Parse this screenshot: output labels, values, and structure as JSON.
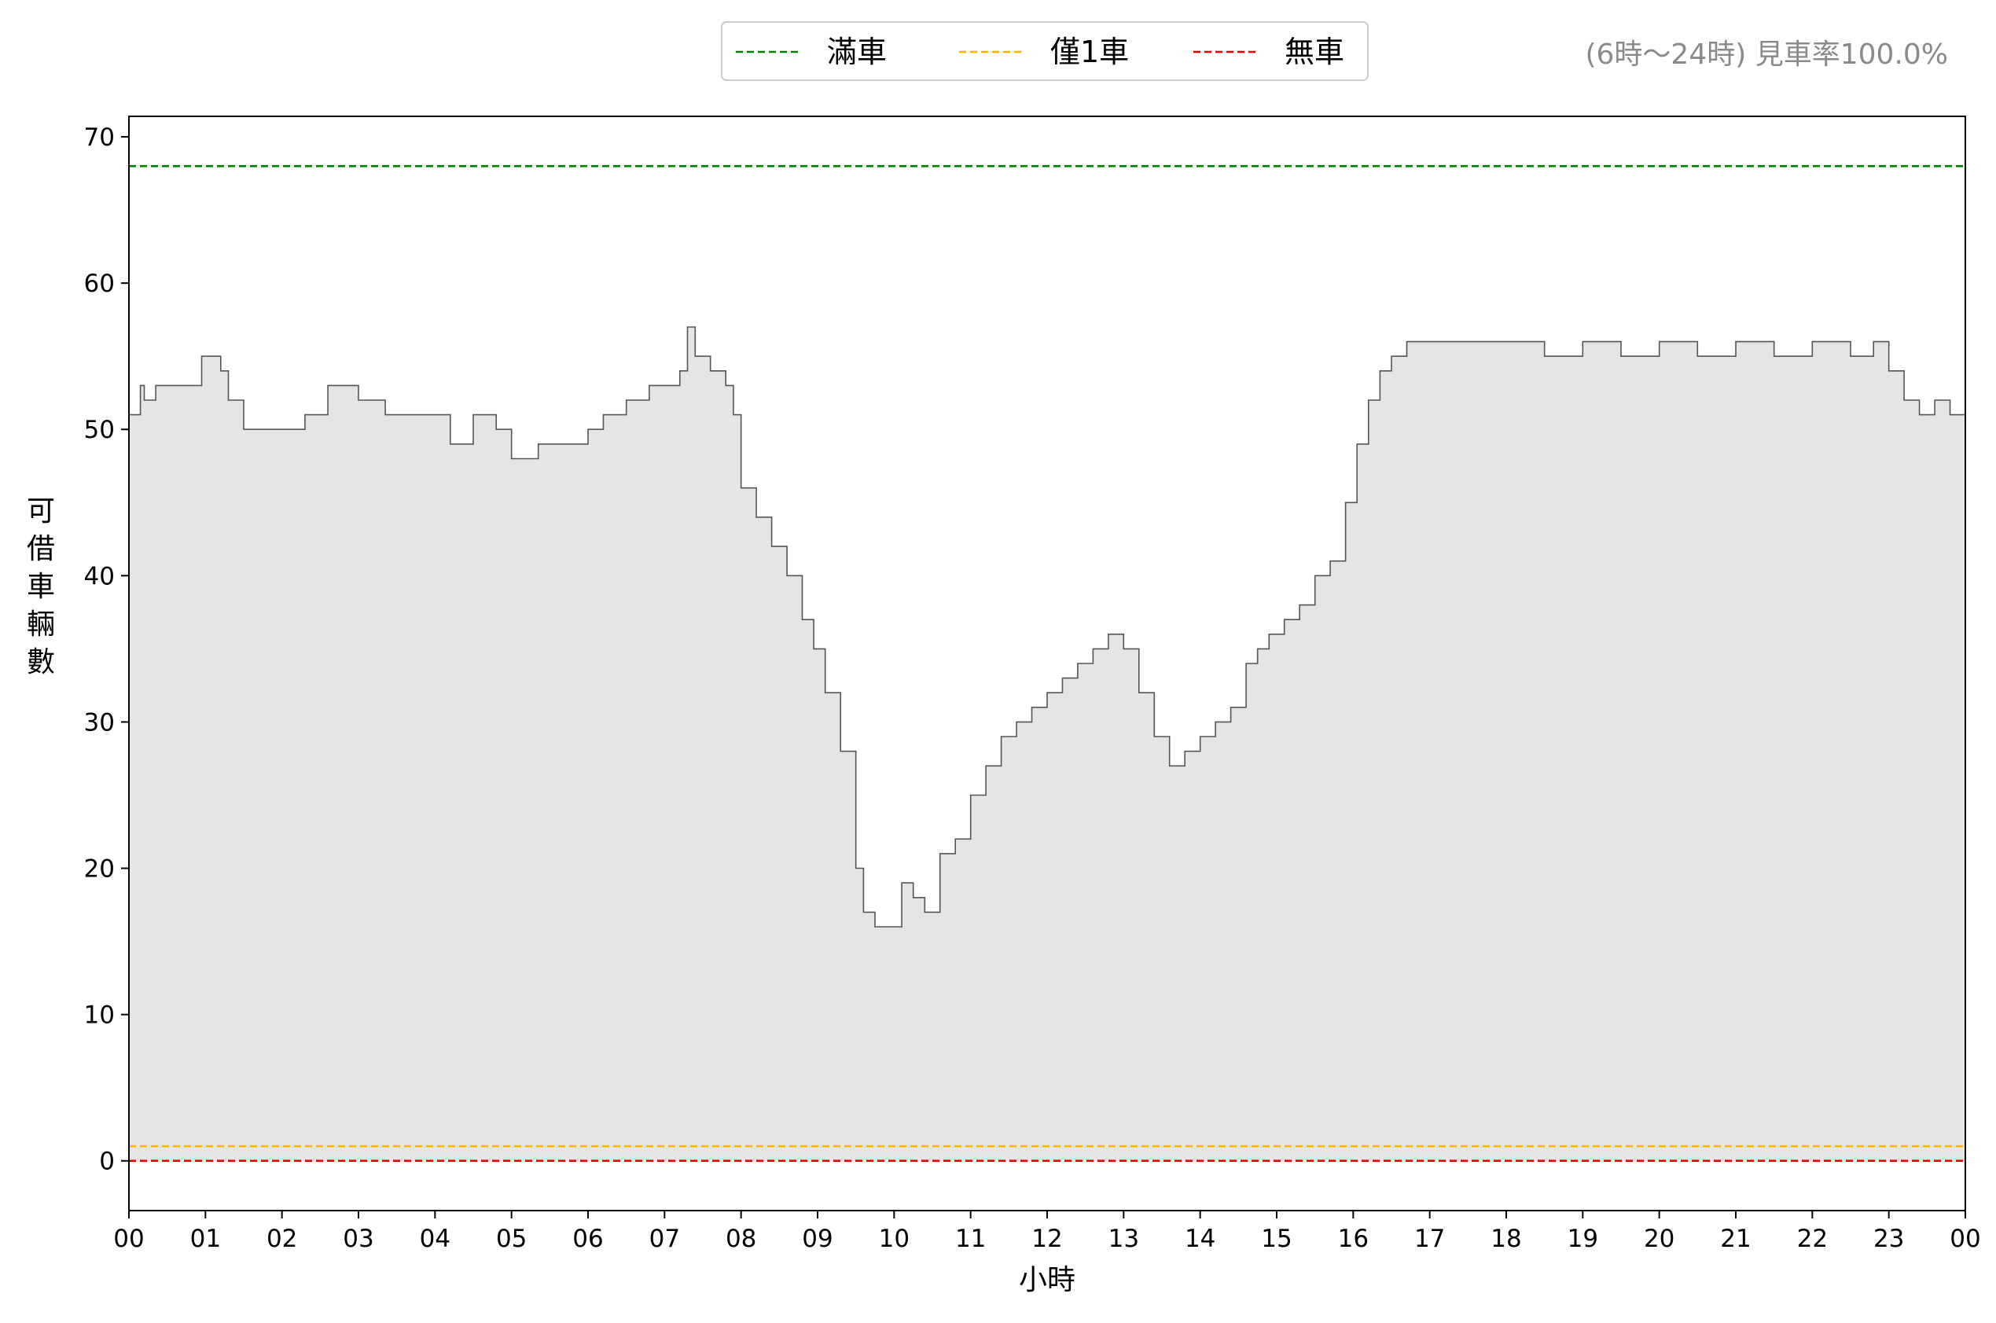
{
  "chart_data": {
    "type": "area",
    "title": "",
    "note": "(6時〜24時) 見車率100.0%",
    "xlabel": "小時",
    "ylabel": "可借車輛數",
    "xlim": [
      0,
      24
    ],
    "ylim": [
      -3.4,
      71.4
    ],
    "x_ticks": [
      "00",
      "01",
      "02",
      "03",
      "04",
      "05",
      "06",
      "07",
      "08",
      "09",
      "10",
      "11",
      "12",
      "13",
      "14",
      "15",
      "16",
      "17",
      "18",
      "19",
      "20",
      "21",
      "22",
      "23",
      "00"
    ],
    "y_ticks": [
      0,
      10,
      20,
      30,
      40,
      50,
      60,
      70
    ],
    "grid": false,
    "legend_position": "top-center",
    "fill_color": "#e5e5e5",
    "line_color": "#555555",
    "reference_lines": [
      {
        "name": "滿車",
        "value": 68,
        "color": "#008000"
      },
      {
        "name": "僅1車",
        "value": 1,
        "color": "#ffb000"
      },
      {
        "name": "無車",
        "value": 0,
        "color": "#e60000"
      }
    ],
    "series": [
      {
        "x": [
          0,
          0.12,
          0.15,
          0.2,
          0.35,
          0.6,
          0.95,
          1.2,
          1.3,
          1.5,
          2.0,
          2.3,
          2.6,
          3.0,
          3.35,
          3.7,
          4.0,
          4.2,
          4.5,
          4.8,
          5.0,
          5.35,
          5.65,
          6.0,
          6.2,
          6.5,
          6.8,
          7.0,
          7.2,
          7.3,
          7.4,
          7.6,
          7.8,
          7.9,
          8.0,
          8.2,
          8.4,
          8.6,
          8.8,
          8.95,
          9.1,
          9.3,
          9.5,
          9.6,
          9.75,
          9.9,
          10.1,
          10.25,
          10.4,
          10.6,
          10.8,
          11.0,
          11.2,
          11.4,
          11.6,
          11.8,
          12.0,
          12.2,
          12.4,
          12.6,
          12.8,
          13.0,
          13.2,
          13.4,
          13.6,
          13.8,
          14.0,
          14.2,
          14.4,
          14.6,
          14.75,
          14.9,
          15.1,
          15.3,
          15.5,
          15.7,
          15.9,
          16.05,
          16.2,
          16.35,
          16.5,
          16.7,
          17.0,
          17.5,
          18.0,
          18.5,
          19.0,
          19.5,
          20.0,
          20.5,
          21.0,
          21.5,
          22.0,
          22.5,
          22.8,
          23.0,
          23.2,
          23.4,
          23.6,
          23.8,
          24.0
        ],
        "values": [
          51,
          51,
          53,
          52,
          53,
          53,
          55,
          54,
          52,
          50,
          50,
          51,
          53,
          52,
          51,
          51,
          51,
          49,
          51,
          50,
          48,
          49,
          49,
          50,
          51,
          52,
          53,
          53,
          54,
          57,
          55,
          54,
          53,
          51,
          46,
          44,
          42,
          40,
          37,
          35,
          32,
          28,
          20,
          17,
          16,
          16,
          19,
          18,
          17,
          21,
          22,
          25,
          27,
          29,
          30,
          31,
          32,
          33,
          34,
          35,
          36,
          35,
          32,
          29,
          27,
          28,
          29,
          30,
          31,
          34,
          35,
          36,
          37,
          38,
          40,
          41,
          45,
          49,
          52,
          54,
          55,
          56,
          56,
          56,
          56,
          55,
          56,
          55,
          56,
          55,
          56,
          55,
          56,
          55,
          56,
          54,
          52,
          51,
          52,
          51,
          51
        ]
      }
    ]
  }
}
